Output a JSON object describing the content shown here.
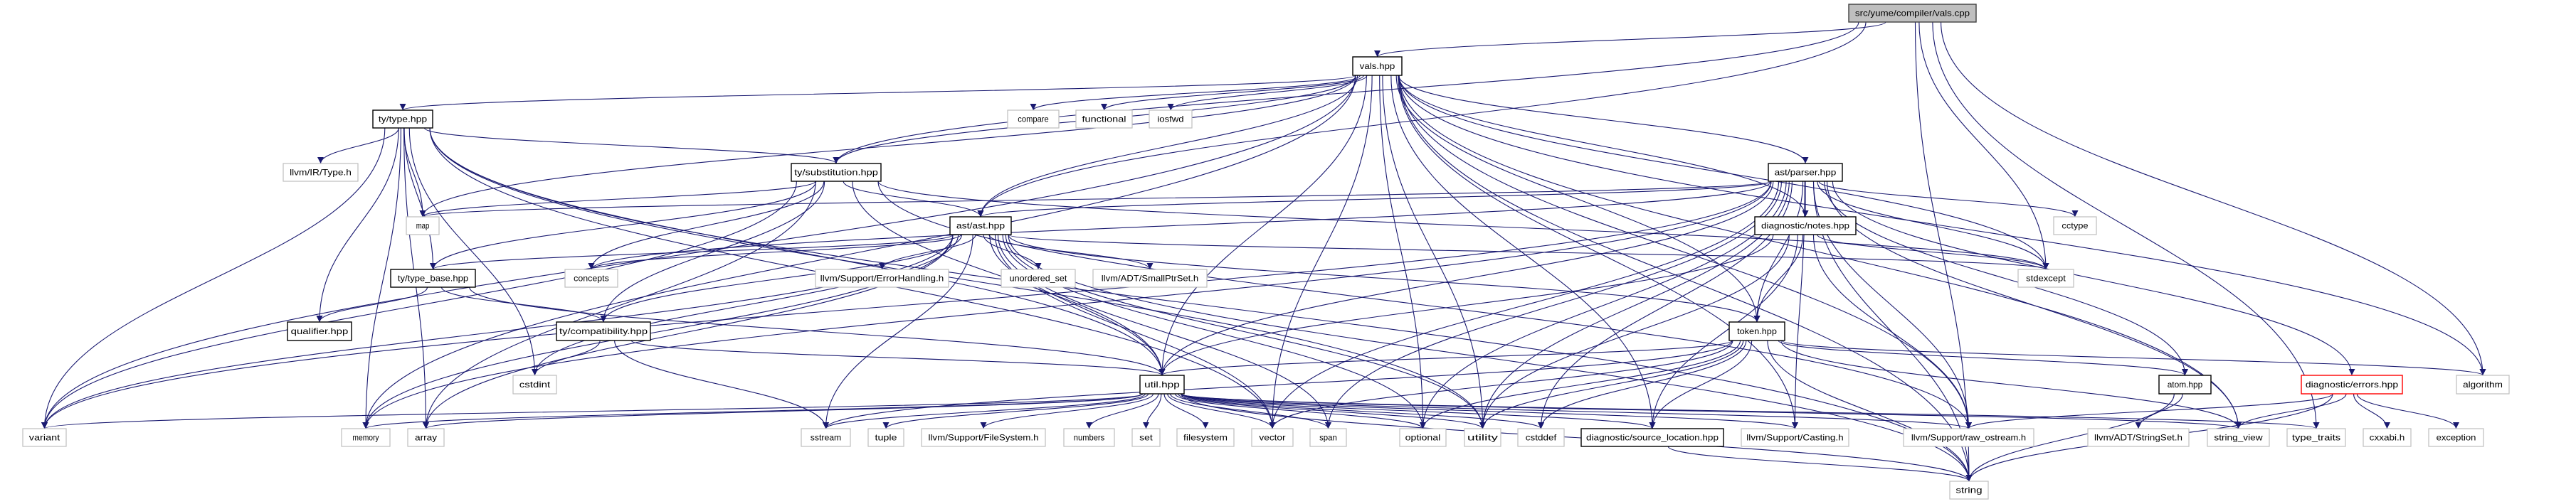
{
  "graph": {
    "colors": {
      "edge": "#191970",
      "project_border": "#000000",
      "system_border": "#bfbfbf",
      "root_fill": "#bfbfbf",
      "error_border": "#ff0000"
    },
    "nodes": [
      {
        "id": "vals_cpp",
        "label": "src/yume/compiler/vals.cpp",
        "kind": "root"
      },
      {
        "id": "vals_hpp",
        "label": "vals.hpp",
        "kind": "project"
      },
      {
        "id": "type_hpp",
        "label": "ty/type.hpp",
        "kind": "project"
      },
      {
        "id": "subst_hpp",
        "label": "ty/substitution.hpp",
        "kind": "project"
      },
      {
        "id": "llvm_type",
        "label": "llvm/IR/Type.h",
        "kind": "system"
      },
      {
        "id": "map",
        "label": "map",
        "kind": "system"
      },
      {
        "id": "compare",
        "label": "compare",
        "kind": "system"
      },
      {
        "id": "functional",
        "label": "functional",
        "kind": "system"
      },
      {
        "id": "iosfwd",
        "label": "iosfwd",
        "kind": "system"
      },
      {
        "id": "ast_hpp",
        "label": "ast/ast.hpp",
        "kind": "project"
      },
      {
        "id": "parser_hpp",
        "label": "ast/parser.hpp",
        "kind": "project"
      },
      {
        "id": "notes_hpp",
        "label": "diagnostic/notes.hpp",
        "kind": "project"
      },
      {
        "id": "cctype",
        "label": "cctype",
        "kind": "system"
      },
      {
        "id": "type_base_hpp",
        "label": "ty/type_base.hpp",
        "kind": "project"
      },
      {
        "id": "concepts",
        "label": "concepts",
        "kind": "system"
      },
      {
        "id": "errhandling",
        "label": "llvm/Support/ErrorHandling.h",
        "kind": "system"
      },
      {
        "id": "unordered_set",
        "label": "unordered_set",
        "kind": "system"
      },
      {
        "id": "smallptrset",
        "label": "llvm/ADT/SmallPtrSet.h",
        "kind": "system"
      },
      {
        "id": "stdexcept",
        "label": "stdexcept",
        "kind": "system"
      },
      {
        "id": "qualifier_hpp",
        "label": "qualifier.hpp",
        "kind": "project"
      },
      {
        "id": "compat_hpp",
        "label": "ty/compatibility.hpp",
        "kind": "project"
      },
      {
        "id": "token_hpp",
        "label": "token.hpp",
        "kind": "project"
      },
      {
        "id": "cstdint",
        "label": "cstdint",
        "kind": "system"
      },
      {
        "id": "util_hpp",
        "label": "util.hpp",
        "kind": "project"
      },
      {
        "id": "atom_hpp",
        "label": "atom.hpp",
        "kind": "project"
      },
      {
        "id": "errors_hpp",
        "label": "diagnostic/errors.hpp",
        "kind": "error"
      },
      {
        "id": "algorithm",
        "label": "algorithm",
        "kind": "system"
      },
      {
        "id": "variant",
        "label": "variant",
        "kind": "system"
      },
      {
        "id": "memory",
        "label": "memory",
        "kind": "system"
      },
      {
        "id": "array",
        "label": "array",
        "kind": "system"
      },
      {
        "id": "sstream",
        "label": "sstream",
        "kind": "system"
      },
      {
        "id": "tuple",
        "label": "tuple",
        "kind": "system"
      },
      {
        "id": "filesystem_h",
        "label": "llvm/Support/FileSystem.h",
        "kind": "system"
      },
      {
        "id": "numbers",
        "label": "numbers",
        "kind": "system"
      },
      {
        "id": "set",
        "label": "set",
        "kind": "system"
      },
      {
        "id": "filesystem",
        "label": "filesystem",
        "kind": "system"
      },
      {
        "id": "vector",
        "label": "vector",
        "kind": "system"
      },
      {
        "id": "span",
        "label": "span",
        "kind": "system"
      },
      {
        "id": "optional",
        "label": "optional",
        "kind": "system"
      },
      {
        "id": "utility",
        "label": "utility",
        "kind": "system"
      },
      {
        "id": "cstddef",
        "label": "cstddef",
        "kind": "system"
      },
      {
        "id": "srcloc_hpp",
        "label": "diagnostic/source_location.hpp",
        "kind": "project"
      },
      {
        "id": "casting",
        "label": "llvm/Support/Casting.h",
        "kind": "system"
      },
      {
        "id": "raw_ostream",
        "label": "llvm/Support/raw_ostream.h",
        "kind": "system"
      },
      {
        "id": "stringset",
        "label": "llvm/ADT/StringSet.h",
        "kind": "system"
      },
      {
        "id": "string_view",
        "label": "string_view",
        "kind": "system"
      },
      {
        "id": "type_traits",
        "label": "type_traits",
        "kind": "system"
      },
      {
        "id": "cxxabi",
        "label": "cxxabi.h",
        "kind": "system"
      },
      {
        "id": "exception",
        "label": "exception",
        "kind": "system"
      },
      {
        "id": "string",
        "label": "string",
        "kind": "system"
      }
    ],
    "edges": [
      [
        "vals_cpp",
        "vals_hpp"
      ],
      [
        "vals_cpp",
        "subst_hpp"
      ],
      [
        "vals_cpp",
        "ast_hpp"
      ],
      [
        "vals_cpp",
        "stdexcept"
      ],
      [
        "vals_cpp",
        "algorithm"
      ],
      [
        "vals_cpp",
        "type_traits"
      ],
      [
        "vals_cpp",
        "string"
      ],
      [
        "vals_hpp",
        "type_hpp"
      ],
      [
        "vals_hpp",
        "compare"
      ],
      [
        "vals_hpp",
        "functional"
      ],
      [
        "vals_hpp",
        "iosfwd"
      ],
      [
        "vals_hpp",
        "subst_hpp"
      ],
      [
        "vals_hpp",
        "ast_hpp"
      ],
      [
        "vals_hpp",
        "parser_hpp"
      ],
      [
        "vals_hpp",
        "notes_hpp"
      ],
      [
        "vals_hpp",
        "token_hpp"
      ],
      [
        "vals_hpp",
        "util_hpp"
      ],
      [
        "vals_hpp",
        "vector"
      ],
      [
        "vals_hpp",
        "utility"
      ],
      [
        "vals_hpp",
        "variant"
      ],
      [
        "vals_hpp",
        "memory"
      ],
      [
        "vals_hpp",
        "map"
      ],
      [
        "vals_hpp",
        "string"
      ],
      [
        "vals_hpp",
        "algorithm"
      ],
      [
        "vals_hpp",
        "stdexcept"
      ],
      [
        "vals_hpp",
        "optional"
      ],
      [
        "vals_hpp",
        "raw_ostream"
      ],
      [
        "vals_hpp",
        "srcloc_hpp"
      ],
      [
        "vals_hpp",
        "string_view"
      ],
      [
        "vals_hpp",
        "casting"
      ],
      [
        "type_hpp",
        "llvm_type"
      ],
      [
        "type_hpp",
        "map"
      ],
      [
        "type_hpp",
        "subst_hpp"
      ],
      [
        "type_hpp",
        "type_base_hpp"
      ],
      [
        "type_hpp",
        "qualifier_hpp"
      ],
      [
        "type_hpp",
        "util_hpp"
      ],
      [
        "type_hpp",
        "variant"
      ],
      [
        "type_hpp",
        "memory"
      ],
      [
        "type_hpp",
        "array"
      ],
      [
        "type_hpp",
        "string"
      ],
      [
        "type_hpp",
        "cstdint"
      ],
      [
        "type_hpp",
        "utility"
      ],
      [
        "type_hpp",
        "vector"
      ],
      [
        "subst_hpp",
        "map"
      ],
      [
        "subst_hpp",
        "ast_hpp"
      ],
      [
        "subst_hpp",
        "concepts"
      ],
      [
        "subst_hpp",
        "type_base_hpp"
      ],
      [
        "subst_hpp",
        "compat_hpp"
      ],
      [
        "subst_hpp",
        "variant"
      ],
      [
        "subst_hpp",
        "util_hpp"
      ],
      [
        "subst_hpp",
        "stdexcept"
      ],
      [
        "subst_hpp",
        "raw_ostream"
      ],
      [
        "subst_hpp",
        "array"
      ],
      [
        "ast_hpp",
        "type_base_hpp"
      ],
      [
        "ast_hpp",
        "concepts"
      ],
      [
        "ast_hpp",
        "errhandling"
      ],
      [
        "ast_hpp",
        "unordered_set"
      ],
      [
        "ast_hpp",
        "smallptrset"
      ],
      [
        "ast_hpp",
        "token_hpp"
      ],
      [
        "ast_hpp",
        "util_hpp"
      ],
      [
        "ast_hpp",
        "compat_hpp"
      ],
      [
        "ast_hpp",
        "cstdint"
      ],
      [
        "ast_hpp",
        "memory"
      ],
      [
        "ast_hpp",
        "variant"
      ],
      [
        "ast_hpp",
        "vector"
      ],
      [
        "ast_hpp",
        "span"
      ],
      [
        "ast_hpp",
        "optional"
      ],
      [
        "ast_hpp",
        "utility"
      ],
      [
        "ast_hpp",
        "string"
      ],
      [
        "ast_hpp",
        "array"
      ],
      [
        "ast_hpp",
        "sstream"
      ],
      [
        "ast_hpp",
        "stdexcept"
      ],
      [
        "parser_hpp",
        "ast_hpp"
      ],
      [
        "parser_hpp",
        "notes_hpp"
      ],
      [
        "parser_hpp",
        "cctype"
      ],
      [
        "parser_hpp",
        "stdexcept"
      ],
      [
        "parser_hpp",
        "token_hpp"
      ],
      [
        "parser_hpp",
        "atom_hpp"
      ],
      [
        "parser_hpp",
        "errors_hpp"
      ],
      [
        "parser_hpp",
        "util_hpp"
      ],
      [
        "parser_hpp",
        "vector"
      ],
      [
        "parser_hpp",
        "optional"
      ],
      [
        "parser_hpp",
        "utility"
      ],
      [
        "parser_hpp",
        "string"
      ],
      [
        "parser_hpp",
        "string_view"
      ],
      [
        "parser_hpp",
        "raw_ostream"
      ],
      [
        "parser_hpp",
        "casting"
      ],
      [
        "parser_hpp",
        "cstddef"
      ],
      [
        "parser_hpp",
        "span"
      ],
      [
        "parser_hpp",
        "memory"
      ],
      [
        "parser_hpp",
        "map"
      ],
      [
        "parser_hpp",
        "concepts"
      ],
      [
        "parser_hpp",
        "variant"
      ],
      [
        "notes_hpp",
        "token_hpp"
      ],
      [
        "notes_hpp",
        "stdexcept"
      ],
      [
        "notes_hpp",
        "util_hpp"
      ],
      [
        "notes_hpp",
        "raw_ostream"
      ],
      [
        "notes_hpp",
        "utility"
      ],
      [
        "notes_hpp",
        "srcloc_hpp"
      ],
      [
        "type_base_hpp",
        "qualifier_hpp"
      ],
      [
        "type_base_hpp",
        "compat_hpp"
      ],
      [
        "type_base_hpp",
        "util_hpp"
      ],
      [
        "compat_hpp",
        "cstdint"
      ],
      [
        "compat_hpp",
        "sstream"
      ],
      [
        "compat_hpp",
        "util_hpp"
      ],
      [
        "token_hpp",
        "util_hpp"
      ],
      [
        "token_hpp",
        "atom_hpp"
      ],
      [
        "token_hpp",
        "algorithm"
      ],
      [
        "token_hpp",
        "string_view"
      ],
      [
        "token_hpp",
        "string"
      ],
      [
        "token_hpp",
        "vector"
      ],
      [
        "token_hpp",
        "optional"
      ],
      [
        "token_hpp",
        "utility"
      ],
      [
        "token_hpp",
        "cstddef"
      ],
      [
        "token_hpp",
        "sstream"
      ],
      [
        "token_hpp",
        "srcloc_hpp"
      ],
      [
        "util_hpp",
        "variant"
      ],
      [
        "util_hpp",
        "memory"
      ],
      [
        "util_hpp",
        "array"
      ],
      [
        "util_hpp",
        "sstream"
      ],
      [
        "util_hpp",
        "tuple"
      ],
      [
        "util_hpp",
        "filesystem_h"
      ],
      [
        "util_hpp",
        "numbers"
      ],
      [
        "util_hpp",
        "set"
      ],
      [
        "util_hpp",
        "filesystem"
      ],
      [
        "util_hpp",
        "vector"
      ],
      [
        "util_hpp",
        "span"
      ],
      [
        "util_hpp",
        "optional"
      ],
      [
        "util_hpp",
        "utility"
      ],
      [
        "util_hpp",
        "cstddef"
      ],
      [
        "util_hpp",
        "srcloc_hpp"
      ],
      [
        "util_hpp",
        "casting"
      ],
      [
        "util_hpp",
        "raw_ostream"
      ],
      [
        "util_hpp",
        "string_view"
      ],
      [
        "util_hpp",
        "type_traits"
      ],
      [
        "util_hpp",
        "string"
      ],
      [
        "atom_hpp",
        "stringset"
      ],
      [
        "atom_hpp",
        "string"
      ],
      [
        "errors_hpp",
        "raw_ostream"
      ],
      [
        "errors_hpp",
        "string_view"
      ],
      [
        "errors_hpp",
        "cxxabi"
      ],
      [
        "errors_hpp",
        "exception"
      ],
      [
        "errors_hpp",
        "string"
      ],
      [
        "srcloc_hpp",
        "string"
      ]
    ]
  }
}
